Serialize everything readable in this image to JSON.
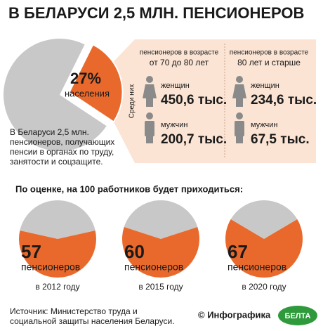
{
  "title": "В БЕЛАРУСИ 2,5 МЛН. ПЕНСИОНЕРОВ",
  "main": {
    "value": 27,
    "value_label": "27%",
    "label": "населения",
    "note": "В Беларуси 2,5 млн. пенсионеров, получающих пенсии в органах по труду, занятости и соцзащите."
  },
  "among": "Среди них",
  "groups": [
    {
      "heading": "пенсионеров в возрасте",
      "range": "от 70 до 80 лет",
      "women_label": "женщин",
      "women": "450,6 тыс.",
      "men_label": "мужчин",
      "men": "200,7 тыс."
    },
    {
      "heading": "пенсионеров в возрасте",
      "range": "80 лет и старше",
      "women_label": "женщин",
      "women": "234,6 тыс.",
      "men_label": "мужчин",
      "men": "67,5 тыс."
    }
  ],
  "forecast": {
    "title": "По оценке, на 100 работников будет приходиться:",
    "items": [
      {
        "value": 57,
        "label": "пенсионеров",
        "year": "в 2012 году"
      },
      {
        "value": 60,
        "label": "пенсионеров",
        "year": "в 2015 году"
      },
      {
        "value": 67,
        "label": "пенсионеров",
        "year": "в 2020 году"
      }
    ]
  },
  "source": "Источник: Министерство труда и социальной защиты населения Беларуси.",
  "credit": "© Инфографика",
  "logo": "БЕЛТА"
}
